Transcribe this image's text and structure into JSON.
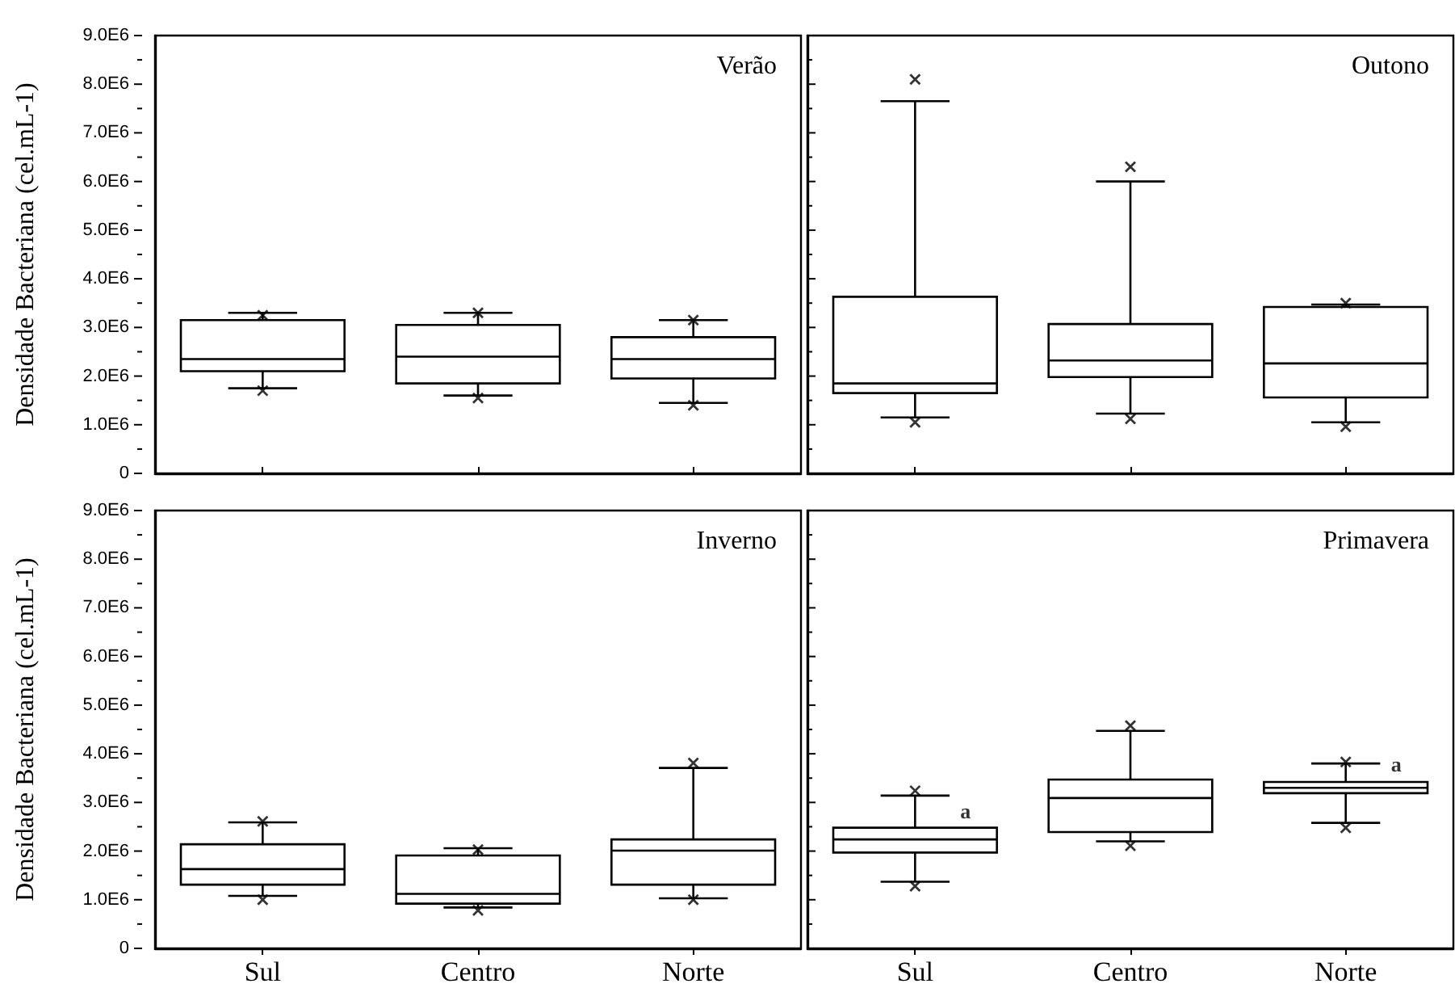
{
  "chart_data": [
    {
      "type": "box",
      "title": "Verão",
      "ylabel": "Densidade Bacteriana (cel.mL-1)",
      "categories": [
        "Sul",
        "Centro",
        "Norte"
      ],
      "color": "#000000",
      "boxes": [
        {
          "low": 1750000,
          "q1": 2100000,
          "median": 2350000,
          "q3": 3150000,
          "high": 3300000,
          "outliers": [
            3250000,
            1700000
          ]
        },
        {
          "low": 1600000,
          "q1": 1850000,
          "median": 2400000,
          "q3": 3050000,
          "high": 3300000,
          "outliers": [
            3300000,
            1550000
          ]
        },
        {
          "low": 1450000,
          "q1": 1950000,
          "median": 2350000,
          "q3": 2800000,
          "high": 3150000,
          "outliers": [
            3150000,
            1400000
          ]
        }
      ],
      "ylim": [
        0,
        9000000
      ],
      "yticks": [
        {
          "value": 0,
          "label": "0"
        },
        {
          "value": 500000,
          "label": null
        },
        {
          "value": 1000000,
          "label": "1.0E6"
        },
        {
          "value": 1500000,
          "label": null
        },
        {
          "value": 2000000,
          "label": "2.0E6"
        },
        {
          "value": 2500000,
          "label": null
        },
        {
          "value": 3000000,
          "label": "3.0E6"
        },
        {
          "value": 3500000,
          "label": null
        },
        {
          "value": 4000000,
          "label": "4.0E6"
        },
        {
          "value": 4500000,
          "label": null
        },
        {
          "value": 5000000,
          "label": "5.0E6"
        },
        {
          "value": 5500000,
          "label": null
        },
        {
          "value": 6000000,
          "label": "6.0E6"
        },
        {
          "value": 6500000,
          "label": null
        },
        {
          "value": 7000000,
          "label": "7.0E6"
        },
        {
          "value": 7500000,
          "label": null
        },
        {
          "value": 8000000,
          "label": "8.0E6"
        },
        {
          "value": 8500000,
          "label": null
        },
        {
          "value": 9000000,
          "label": "9.0E6"
        }
      ],
      "tick_labels": "y"
    },
    {
      "type": "box",
      "title": "Outono",
      "categories": [
        "Sul",
        "Centro",
        "Norte"
      ],
      "color": "#000000",
      "boxes": [
        {
          "low": 1150000,
          "q1": 1650000,
          "median": 1850000,
          "q3": 3630000,
          "high": 7650000,
          "outliers": [
            8100000,
            1050000
          ]
        },
        {
          "low": 1230000,
          "q1": 1980000,
          "median": 2320000,
          "q3": 3070000,
          "high": 6000000,
          "outliers": [
            6300000,
            1120000
          ]
        },
        {
          "low": 1050000,
          "q1": 1560000,
          "median": 2260000,
          "q3": 3420000,
          "high": 3470000,
          "outliers": [
            3500000,
            960000
          ]
        }
      ],
      "ylim": [
        0,
        9000000
      ],
      "yticks": [
        {
          "value": 0,
          "label": "0"
        },
        {
          "value": 500000,
          "label": null
        },
        {
          "value": 1000000,
          "label": "1.0E6"
        },
        {
          "value": 1500000,
          "label": null
        },
        {
          "value": 2000000,
          "label": "2.0E6"
        },
        {
          "value": 2500000,
          "label": null
        },
        {
          "value": 3000000,
          "label": "3.0E6"
        },
        {
          "value": 3500000,
          "label": null
        },
        {
          "value": 4000000,
          "label": "4.0E6"
        },
        {
          "value": 4500000,
          "label": null
        },
        {
          "value": 5000000,
          "label": "5.0E6"
        },
        {
          "value": 5500000,
          "label": null
        },
        {
          "value": 6000000,
          "label": "6.0E6"
        },
        {
          "value": 6500000,
          "label": null
        },
        {
          "value": 7000000,
          "label": "7.0E6"
        },
        {
          "value": 7500000,
          "label": null
        },
        {
          "value": 8000000,
          "label": "8.0E6"
        },
        {
          "value": 8500000,
          "label": null
        },
        {
          "value": 9000000,
          "label": "9.0E6"
        }
      ],
      "tick_labels": false
    },
    {
      "type": "box",
      "title": "Inverno",
      "ylabel": "Densidade Bacteriana (cel.mL-1)",
      "categories": [
        "Sul",
        "Centro",
        "Norte"
      ],
      "color": "#000000",
      "boxes": [
        {
          "low": 1080000,
          "q1": 1310000,
          "median": 1630000,
          "q3": 2140000,
          "high": 2590000,
          "outliers": [
            2610000,
            1000000
          ]
        },
        {
          "low": 840000,
          "q1": 920000,
          "median": 1120000,
          "q3": 1910000,
          "high": 2060000,
          "outliers": [
            2030000,
            780000
          ]
        },
        {
          "low": 1030000,
          "q1": 1310000,
          "median": 2010000,
          "q3": 2240000,
          "high": 3710000,
          "outliers": [
            3810000,
            1000000
          ]
        }
      ],
      "ylim": [
        0,
        9000000
      ],
      "yticks": [
        {
          "value": 0,
          "label": "0"
        },
        {
          "value": 500000,
          "label": null
        },
        {
          "value": 1000000,
          "label": "1.0E6"
        },
        {
          "value": 1500000,
          "label": null
        },
        {
          "value": 2000000,
          "label": "2.0E6"
        },
        {
          "value": 2500000,
          "label": null
        },
        {
          "value": 3000000,
          "label": "3.0E6"
        },
        {
          "value": 3500000,
          "label": null
        },
        {
          "value": 4000000,
          "label": "4.0E6"
        },
        {
          "value": 4500000,
          "label": null
        },
        {
          "value": 5000000,
          "label": "5.0E6"
        },
        {
          "value": 5500000,
          "label": null
        },
        {
          "value": 6000000,
          "label": "6.0E6"
        },
        {
          "value": 6500000,
          "label": null
        },
        {
          "value": 7000000,
          "label": "7.0E6"
        },
        {
          "value": 7500000,
          "label": null
        },
        {
          "value": 8000000,
          "label": "8.0E6"
        },
        {
          "value": 8500000,
          "label": null
        },
        {
          "value": 9000000,
          "label": "9.0E6"
        }
      ]
    },
    {
      "type": "box",
      "title": "Primavera",
      "categories": [
        "Sul",
        "Centro",
        "Norte"
      ],
      "color": "#000000",
      "boxes": [
        {
          "low": 1370000,
          "q1": 1970000,
          "median": 2240000,
          "q3": 2480000,
          "high": 3140000,
          "outliers": [
            3240000,
            1280000
          ]
        },
        {
          "low": 2200000,
          "q1": 2390000,
          "median": 3090000,
          "q3": 3470000,
          "high": 4470000,
          "outliers": [
            4580000,
            2110000
          ]
        },
        {
          "low": 2580000,
          "q1": 3190000,
          "median": 3300000,
          "q3": 3420000,
          "high": 3800000,
          "outliers": [
            3830000,
            2480000
          ]
        }
      ],
      "annotations": [
        {
          "text": "a",
          "x": "Sul",
          "y": 2830000
        },
        {
          "text": "a",
          "x": "Norte",
          "y": 3780000
        }
      ],
      "ylim": [
        0,
        9000000
      ],
      "yticks": [
        {
          "value": 0,
          "label": "0"
        },
        {
          "value": 500000,
          "label": null
        },
        {
          "value": 1000000,
          "label": "1.0E6"
        },
        {
          "value": 1500000,
          "label": null
        },
        {
          "value": 2000000,
          "label": "2.0E6"
        },
        {
          "value": 2500000,
          "label": null
        },
        {
          "value": 3000000,
          "label": "3.0E6"
        },
        {
          "value": 3500000,
          "label": null
        },
        {
          "value": 4000000,
          "label": "4.0E6"
        },
        {
          "value": 4500000,
          "label": null
        },
        {
          "value": 5000000,
          "label": "5.0E6"
        },
        {
          "value": 5500000,
          "label": null
        },
        {
          "value": 6000000,
          "label": "6.0E6"
        },
        {
          "value": 6500000,
          "label": null
        },
        {
          "value": 7000000,
          "label": "7.0E6"
        },
        {
          "value": 7500000,
          "label": null
        },
        {
          "value": 8000000,
          "label": "8.0E6"
        },
        {
          "value": 8500000,
          "label": null
        },
        {
          "value": 9000000,
          "label": "9.0E6"
        }
      ],
      "tick_labels": "x"
    }
  ]
}
